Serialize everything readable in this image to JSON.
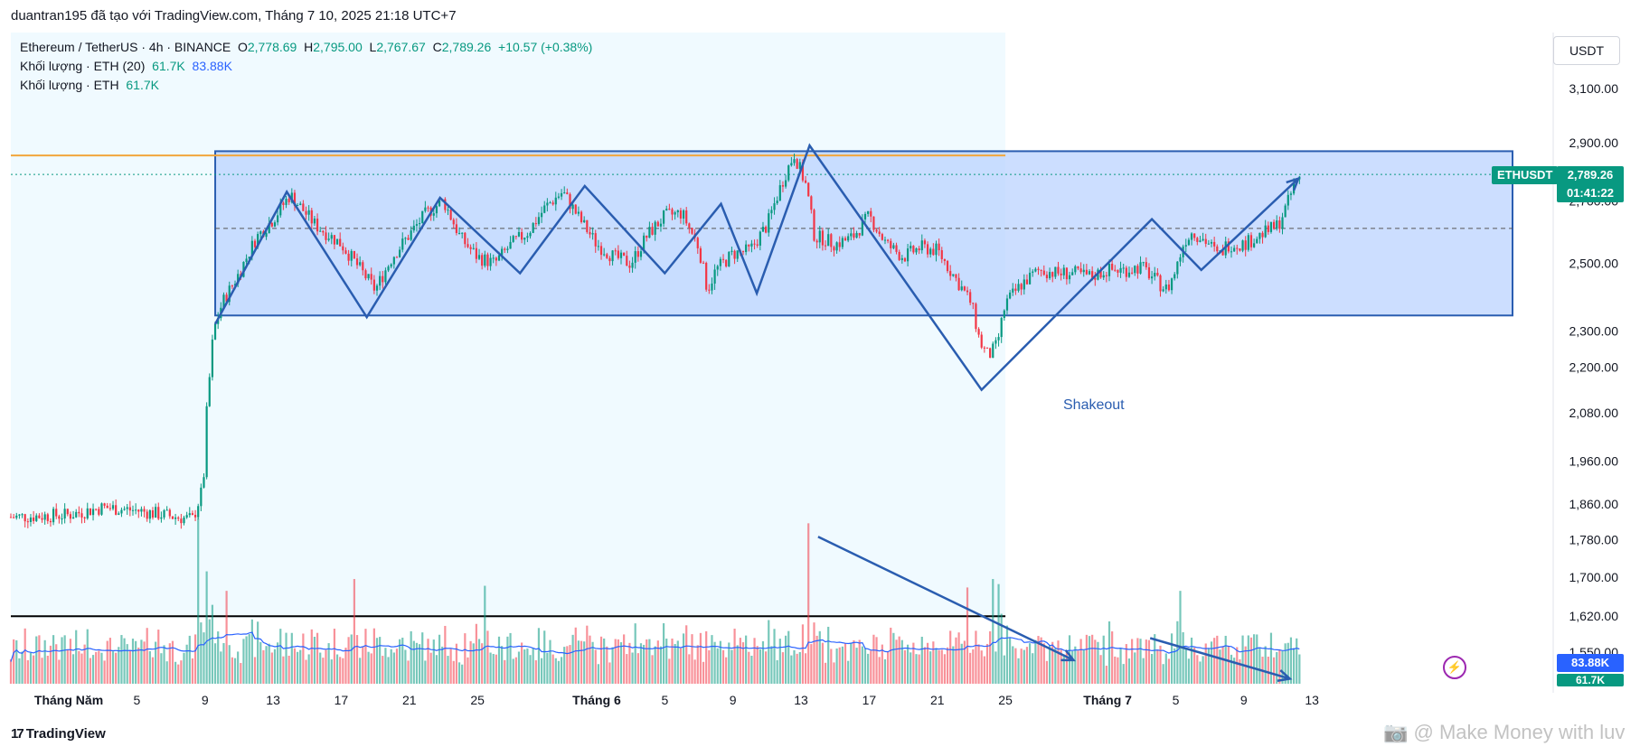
{
  "header": {
    "author_line": "duantran195 đã tạo với TradingView.com, Tháng 7 10, 2025 21:18 UTC+7"
  },
  "legend": {
    "symbol": "Ethereum / TetherUS · 4h · BINANCE",
    "o_label": "O",
    "o_value": "2,778.69",
    "h_label": "H",
    "h_value": "2,795.00",
    "l_label": "L",
    "l_value": "2,767.67",
    "c_label": "C",
    "c_value": "2,789.26",
    "change": "+10.57 (+0.38%)",
    "vol_ma_label": "Khối lượng · ETH (20)",
    "vol_ma_value1": "61.7K",
    "vol_ma_value2": "83.88K",
    "vol_label": "Khối lượng · ETH",
    "vol_value": "61.7K"
  },
  "currency": "USDT",
  "price_tag": {
    "symbol": "ETHUSDT",
    "price": "2,789.26",
    "countdown": "01:41:22"
  },
  "volume_tags": {
    "ma": "83.88K",
    "vol": "61.7K"
  },
  "annotation": "Shakeout",
  "footer_logo": "TradingView",
  "watermark": "Make Money with luv",
  "colors": {
    "up": "#089981",
    "down": "#f23645",
    "zone_fill": "#bbd3ff",
    "zone_line": "#2a5db0",
    "orange_line": "#f2a63b",
    "bg_shade": "#f0faff"
  },
  "chart_data": {
    "type": "candlestick",
    "symbol": "ETHUSDT",
    "interval": "4h",
    "y_scale": "log",
    "y_ticks": [
      "3,100.00",
      "2,900.00",
      "2,700.00",
      "2,500.00",
      "2,300.00",
      "2,200.00",
      "2,080.00",
      "1,960.00",
      "1,860.00",
      "1,780.00",
      "1,700.00",
      "1,620.00",
      "1,550.00"
    ],
    "y_tick_values": [
      3100,
      2900,
      2700,
      2500,
      2300,
      2200,
      2080,
      1960,
      1860,
      1780,
      1700,
      1620,
      1550
    ],
    "x_ticks": [
      "Tháng Năm",
      "5",
      "9",
      "13",
      "17",
      "21",
      "25",
      "Tháng 6",
      "5",
      "9",
      "13",
      "17",
      "21",
      "25",
      "Tháng 7",
      "5",
      "9",
      "13"
    ],
    "x_tick_days": [
      1,
      5,
      9,
      13,
      17,
      21,
      25,
      32,
      36,
      40,
      44,
      48,
      52,
      56,
      62,
      66,
      70,
      74
    ],
    "x_range_days": [
      -2.4,
      75
    ],
    "price_path": [
      [
        -2.4,
        1830
      ],
      [
        1,
        1835
      ],
      [
        3,
        1852
      ],
      [
        5,
        1845
      ],
      [
        7,
        1832
      ],
      [
        8.3,
        1825
      ],
      [
        8.9,
        1900
      ],
      [
        9.1,
        2080
      ],
      [
        9.5,
        2300
      ],
      [
        10,
        2380
      ],
      [
        11,
        2470
      ],
      [
        12,
        2580
      ],
      [
        13,
        2640
      ],
      [
        14,
        2720
      ],
      [
        15.5,
        2620
      ],
      [
        17,
        2560
      ],
      [
        18,
        2490
      ],
      [
        19,
        2420
      ],
      [
        20,
        2520
      ],
      [
        21,
        2590
      ],
      [
        22,
        2660
      ],
      [
        23,
        2700
      ],
      [
        24,
        2580
      ],
      [
        25,
        2520
      ],
      [
        26,
        2500
      ],
      [
        27,
        2560
      ],
      [
        28,
        2600
      ],
      [
        29,
        2680
      ],
      [
        30,
        2730
      ],
      [
        31,
        2640
      ],
      [
        32,
        2560
      ],
      [
        33,
        2520
      ],
      [
        34,
        2500
      ],
      [
        35,
        2590
      ],
      [
        36,
        2650
      ],
      [
        37,
        2660
      ],
      [
        38,
        2550
      ],
      [
        38.5,
        2420
      ],
      [
        39,
        2480
      ],
      [
        40,
        2530
      ],
      [
        41,
        2540
      ],
      [
        42,
        2620
      ],
      [
        42.5,
        2700
      ],
      [
        43,
        2780
      ],
      [
        43.6,
        2860
      ],
      [
        44.3,
        2750
      ],
      [
        44.8,
        2580
      ],
      [
        45.2,
        2580
      ],
      [
        46,
        2560
      ],
      [
        47,
        2580
      ],
      [
        48,
        2650
      ],
      [
        49,
        2560
      ],
      [
        50,
        2520
      ],
      [
        51,
        2550
      ],
      [
        52,
        2540
      ],
      [
        53,
        2460
      ],
      [
        54,
        2380
      ],
      [
        54.5,
        2270
      ],
      [
        55,
        2230
      ],
      [
        55.5,
        2260
      ],
      [
        56,
        2380
      ],
      [
        57,
        2440
      ],
      [
        58,
        2480
      ],
      [
        59,
        2470
      ],
      [
        60,
        2470
      ],
      [
        61,
        2460
      ],
      [
        62,
        2480
      ],
      [
        63,
        2480
      ],
      [
        64,
        2490
      ],
      [
        65,
        2440
      ],
      [
        65.5,
        2420
      ],
      [
        66,
        2480
      ],
      [
        66.5,
        2570
      ],
      [
        67,
        2600
      ],
      [
        68,
        2560
      ],
      [
        68.5,
        2520
      ],
      [
        69,
        2560
      ],
      [
        70,
        2560
      ],
      [
        71,
        2590
      ],
      [
        72,
        2620
      ],
      [
        72.5,
        2680
      ],
      [
        73,
        2760
      ],
      [
        73.4,
        2789
      ]
    ],
    "volume_spikes": [
      [
        8.6,
        0.98
      ],
      [
        10.2,
        0.55
      ],
      [
        17.7,
        0.62
      ],
      [
        25.4,
        0.58
      ],
      [
        44.5,
        0.95
      ],
      [
        53.7,
        0.57
      ],
      [
        55.6,
        0.59
      ],
      [
        55.3,
        0.62
      ],
      [
        66.2,
        0.55
      ]
    ],
    "drawings": {
      "range_top": 2870,
      "range_bottom": 2345,
      "range_mid": 2610,
      "orange_level": 2855,
      "zigzag": [
        [
          9.6,
          2320
        ],
        [
          13.8,
          2730
        ],
        [
          18.5,
          2340
        ],
        [
          22.8,
          2710
        ],
        [
          27.5,
          2470
        ],
        [
          31.3,
          2750
        ],
        [
          36,
          2470
        ],
        [
          39.3,
          2690
        ],
        [
          41.4,
          2410
        ],
        [
          44.5,
          2890
        ],
        [
          54.6,
          2140
        ],
        [
          64.6,
          2640
        ],
        [
          67.5,
          2480
        ],
        [
          73.2,
          2775
        ]
      ],
      "volume_arrows": [
        {
          "from": [
            45.0,
            0.87
          ],
          "to": [
            60,
            0.14
          ]
        },
        {
          "from": [
            64.5,
            0.27
          ],
          "to": [
            72.7,
            0.03
          ]
        }
      ],
      "black_line_price": 1620
    }
  }
}
